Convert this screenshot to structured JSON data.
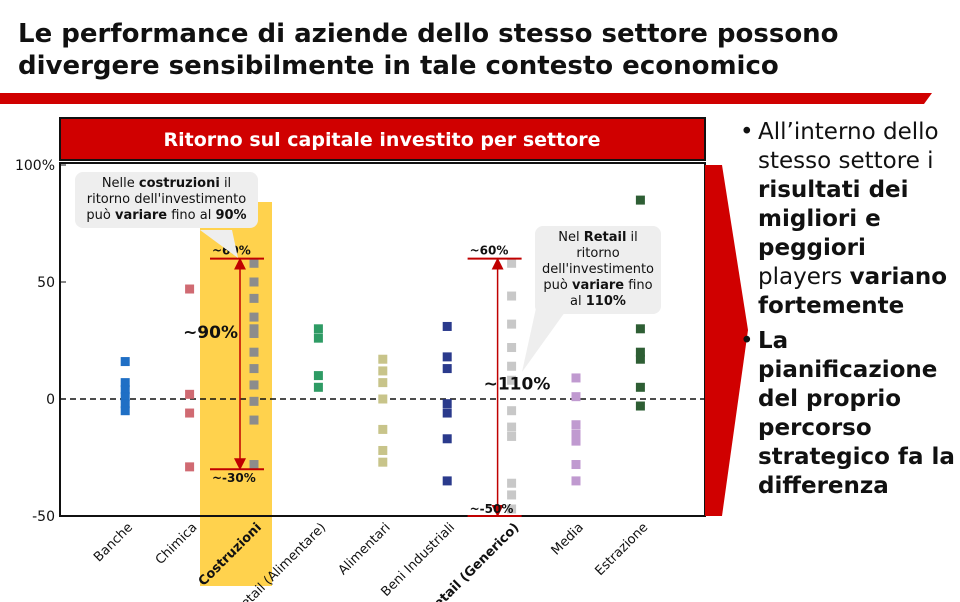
{
  "header": {
    "title_lines": [
      "Le performance di aziende dello stesso settore possono",
      "divergere sensibilmente in tale contesto economico"
    ]
  },
  "chart_data": {
    "type": "strip",
    "title": "Ritorno sul capitale investito per settore",
    "categories": [
      "Banche",
      "Chimica",
      "Costruzioni",
      "Retail (Alimentare)",
      "Alimentari",
      "Beni Industriali",
      "Retail (Generico)",
      "Media",
      "Estrazione"
    ],
    "bold_categories": [
      2,
      6
    ],
    "colors": [
      "#1f6fc5",
      "#d06a72",
      "#8c8c8c",
      "#2e9b64",
      "#c8c48a",
      "#2a3a8c",
      "#c8c8c8",
      "#c09ad0",
      "#2e5e34"
    ],
    "values": [
      [
        16,
        7,
        4,
        1,
        -2,
        -5
      ],
      [
        47,
        2,
        -6,
        -29
      ],
      [
        58,
        50,
        43,
        35,
        30,
        28,
        20,
        13,
        6,
        -1,
        -9,
        -28
      ],
      [
        30,
        26,
        10,
        5
      ],
      [
        17,
        12,
        7,
        0,
        -13,
        -22,
        -27
      ],
      [
        31,
        18,
        13,
        -2,
        -6,
        -17,
        -35
      ],
      [
        58,
        44,
        32,
        22,
        14,
        8,
        -5,
        -12,
        -16,
        -36,
        -41,
        -47
      ],
      [
        9,
        1,
        -11,
        -15,
        -18,
        -28,
        -35
      ],
      [
        85,
        30,
        20,
        17,
        5,
        -3
      ]
    ],
    "ylim": [
      -50,
      100
    ],
    "yticks": [
      -50,
      0,
      50,
      {
        "value": 100,
        "label": "100%"
      }
    ],
    "zero_line": true,
    "ranges": [
      {
        "category": "Costruzioni",
        "top": 60,
        "bottom": -30,
        "top_label": "~60%",
        "bottom_label": "~-30%",
        "span_label": "~90%"
      },
      {
        "category": "Retail (Generico)",
        "top": 60,
        "bottom": -50,
        "top_label": "~60%",
        "bottom_label": "~-50%",
        "span_label": "~110%"
      }
    ],
    "callouts": [
      [
        {
          "t": "Nelle "
        },
        {
          "t": "costruzioni",
          "b": true
        },
        {
          "t": " il ritorno dell'investimento può "
        },
        {
          "t": "variare",
          "b": true
        },
        {
          "t": " fino al "
        },
        {
          "t": "90%",
          "b": true
        }
      ],
      [
        {
          "t": "Nel "
        },
        {
          "t": "Retail",
          "b": true
        },
        {
          "t": " il ritorno dell'investimento può "
        },
        {
          "t": "variare",
          "b": true
        },
        {
          "t": " fino al "
        },
        {
          "t": "110%",
          "b": true
        }
      ]
    ]
  },
  "bullets": [
    [
      {
        "t": "All’interno dello stesso settore i "
      },
      {
        "t": "risultati dei migliori e peggiori",
        "b": true
      },
      {
        "t": " players "
      },
      {
        "t": "variano fortemente",
        "b": true
      }
    ],
    [
      {
        "t": "La pianificazione del proprio percorso strategico fa la differenza",
        "b": true
      }
    ]
  ]
}
